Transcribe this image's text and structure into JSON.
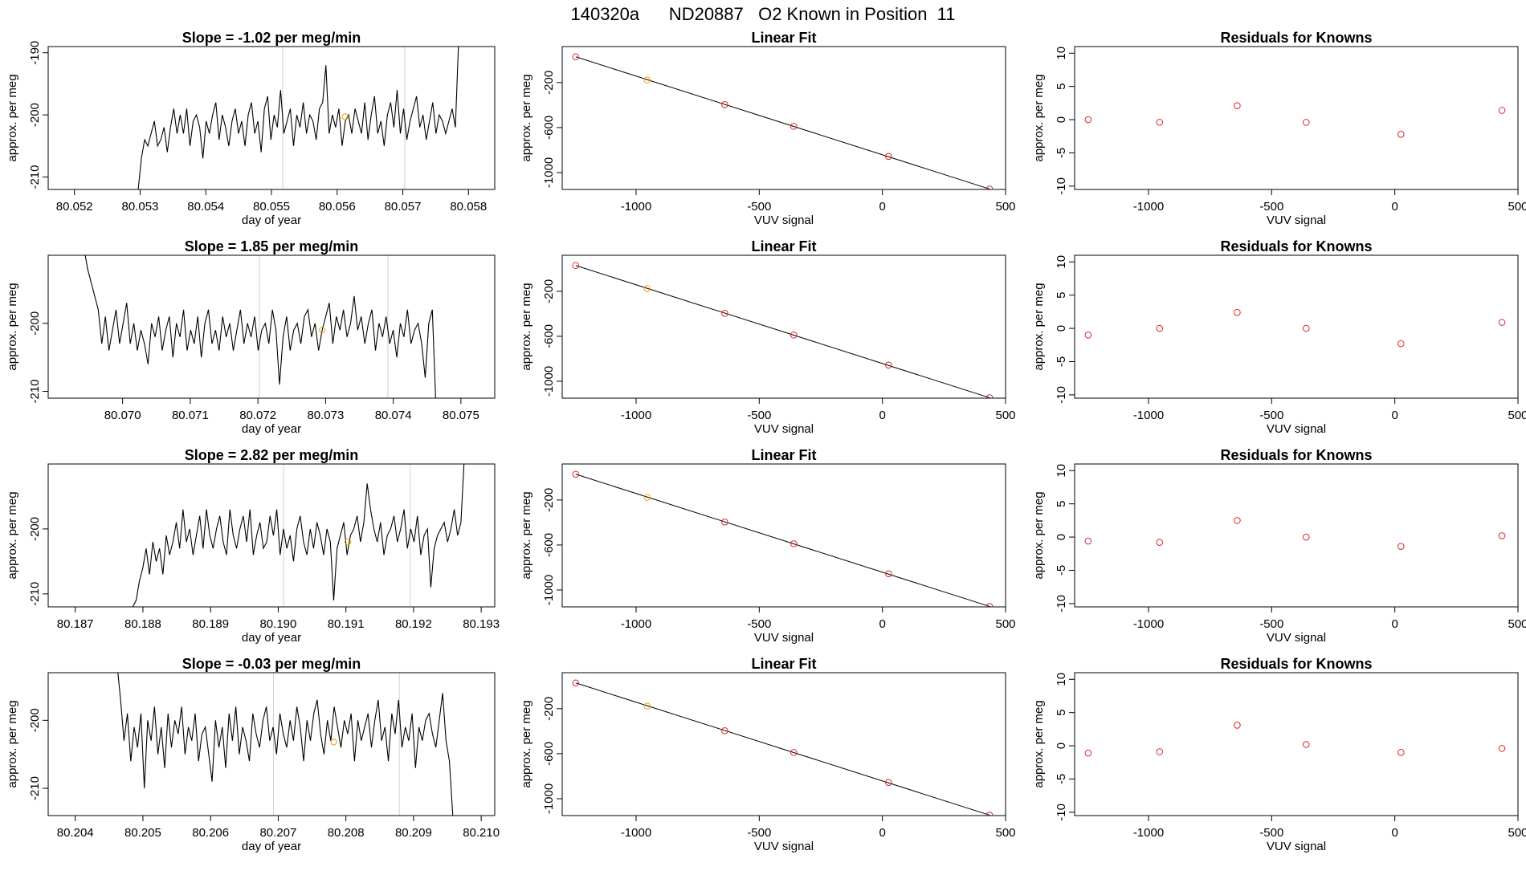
{
  "figure": {
    "title": "140320a      ND20887   O2 Known in Position  11"
  },
  "colors": {
    "axis": "#000000",
    "trace": "#000000",
    "fit_line": "#000000",
    "point_known": "#d62728",
    "point_highlight": "#f0a000",
    "vline": "#d0d0d0"
  },
  "chart_data": [
    {
      "type": "line",
      "row": 1,
      "title": "Slope =  -1.02  per meg/min",
      "xlabel": "day of year",
      "ylabel": "approx. per meg",
      "xlim": [
        80.0516,
        80.0584
      ],
      "ylim": [
        -212,
        -189
      ],
      "xticks": [
        80.052,
        80.053,
        80.054,
        80.055,
        80.056,
        80.057,
        80.058
      ],
      "xtick_labels": [
        "80.052",
        "80.053",
        "80.054",
        "80.055",
        "80.056",
        "80.057",
        "80.058"
      ],
      "yticks": [
        -190,
        -200,
        -210
      ],
      "ytick_labels": [
        "-190",
        "-200",
        "-210"
      ],
      "vlines": [
        80.05517,
        80.05703
      ],
      "trace_x_range": [
        80.05297,
        80.05785
      ],
      "trace_values": [
        -212,
        -207,
        -204,
        -205,
        -203,
        -201,
        -205,
        -204,
        -202,
        -206,
        -202,
        -199,
        -203,
        -200,
        -203,
        -199,
        -205,
        -201,
        -200,
        -202,
        -207,
        -201,
        -203,
        -200,
        -198,
        -204,
        -200,
        -202,
        -205,
        -201,
        -199,
        -203,
        -201,
        -205,
        -200,
        -198,
        -203,
        -201,
        -206,
        -199,
        -197,
        -204,
        -200,
        -202,
        -196,
        -203,
        -201,
        -199,
        -205,
        -200,
        -202,
        -198,
        -203,
        -200,
        -201,
        -204,
        -199,
        -198,
        -192,
        -203,
        -200,
        -202,
        -199,
        -205,
        -201,
        -200,
        -203,
        -199,
        -201,
        -203,
        -198,
        -204,
        -200,
        -197,
        -203,
        -201,
        -205,
        -200,
        -198,
        -202,
        -196,
        -203,
        -199,
        -204,
        -201,
        -199,
        -197,
        -202,
        -200,
        -204,
        -201,
        -198,
        -203,
        -200,
        -201,
        -203,
        -201,
        -199,
        -202,
        -188
      ],
      "highlight_point": [
        80.05612,
        -200.3
      ]
    },
    {
      "type": "scatter",
      "row": 1,
      "title": "Linear Fit",
      "xlabel": "VUV signal",
      "ylabel": "approx. per meg",
      "xlim": [
        -1300,
        500
      ],
      "ylim": [
        -1150,
        120
      ],
      "xticks": [
        -1000,
        -500,
        0,
        500
      ],
      "xtick_labels": [
        "-1000",
        "-500",
        "0",
        "500"
      ],
      "yticks": [
        -200,
        -600,
        -1000
      ],
      "ytick_labels": [
        "-200",
        "-600",
        "-1000"
      ],
      "points_x": [
        -1245,
        -955,
        -640,
        -360,
        25,
        435
      ],
      "points_y": [
        29,
        -177,
        -396,
        -589,
        -856,
        -1146
      ],
      "highlight_index": 1,
      "fit_line": {
        "x": [
          -1245,
          435
        ],
        "y": [
          29,
          -1146
        ]
      }
    },
    {
      "type": "scatter",
      "row": 1,
      "title": "Residuals for Knowns",
      "xlabel": "VUV signal",
      "ylabel": "approx. per meg",
      "xlim": [
        -1300,
        500
      ],
      "ylim": [
        -10.5,
        11
      ],
      "xticks": [
        -1000,
        -500,
        0,
        500
      ],
      "xtick_labels": [
        "-1000",
        "-500",
        "0",
        "500"
      ],
      "yticks": [
        10,
        5,
        0,
        -5,
        -10
      ],
      "ytick_labels": [
        "10",
        "5",
        "0",
        "-5",
        "-10"
      ],
      "points_x": [
        -1245,
        -955,
        -640,
        -360,
        25,
        435
      ],
      "points_y": [
        0,
        -0.4,
        2.1,
        -0.4,
        -2.2,
        1.4
      ]
    },
    {
      "type": "line",
      "row": 2,
      "title": "Slope =  1.85  per meg/min",
      "xlabel": "day of year",
      "ylabel": "approx. per meg",
      "xlim": [
        80.0689,
        80.0755
      ],
      "ylim": [
        -211,
        -190
      ],
      "xticks": [
        80.07,
        80.071,
        80.072,
        80.073,
        80.074,
        80.075
      ],
      "xtick_labels": [
        "80.070",
        "80.071",
        "80.072",
        "80.073",
        "80.074",
        "80.075"
      ],
      "yticks": [
        -200,
        -210
      ],
      "ytick_labels": [
        "-200",
        "-210"
      ],
      "vlines": [
        80.07202,
        80.07392
      ],
      "trace_x_range": [
        80.06943,
        80.07463
      ],
      "trace_values": [
        -189,
        -192,
        -194,
        -196,
        -198,
        -203,
        -199,
        -204,
        -201,
        -198,
        -203,
        -200,
        -197,
        -203,
        -200,
        -204,
        -201,
        -203,
        -206,
        -200,
        -202,
        -199,
        -204,
        -201,
        -199,
        -205,
        -200,
        -202,
        -198,
        -204,
        -201,
        -203,
        -199,
        -205,
        -200,
        -198,
        -203,
        -201,
        -204,
        -199,
        -202,
        -200,
        -204,
        -201,
        -198,
        -203,
        -200,
        -202,
        -199,
        -204,
        -201,
        -200,
        -203,
        -198,
        -201,
        -209,
        -202,
        -199,
        -204,
        -201,
        -200,
        -203,
        -199,
        -198,
        -202,
        -200,
        -204,
        -201,
        -199,
        -197,
        -203,
        -199,
        -201,
        -198,
        -202,
        -200,
        -196,
        -201,
        -199,
        -203,
        -200,
        -198,
        -204,
        -200,
        -202,
        -199,
        -203,
        -201,
        -205,
        -200,
        -202,
        -198,
        -203,
        -201,
        -200,
        -203,
        -208,
        -200,
        -198,
        -212
      ],
      "highlight_point": [
        80.07295,
        -201.0
      ]
    },
    {
      "type": "scatter",
      "row": 2,
      "title": "Linear Fit",
      "xlabel": "VUV signal",
      "ylabel": "approx. per meg",
      "xlim": [
        -1300,
        500
      ],
      "ylim": [
        -1150,
        120
      ],
      "xticks": [
        -1000,
        -500,
        0,
        500
      ],
      "xtick_labels": [
        "-1000",
        "-500",
        "0",
        "500"
      ],
      "yticks": [
        -200,
        -600,
        -1000
      ],
      "ytick_labels": [
        "-200",
        "-600",
        "-1000"
      ],
      "points_x": [
        -1245,
        -955,
        -640,
        -360,
        25,
        435
      ],
      "points_y": [
        29,
        -177,
        -396,
        -589,
        -856,
        -1146
      ],
      "highlight_index": 1,
      "fit_line": {
        "x": [
          -1245,
          435
        ],
        "y": [
          29,
          -1146
        ]
      }
    },
    {
      "type": "scatter",
      "row": 2,
      "title": "Residuals for Knowns",
      "xlabel": "VUV signal",
      "ylabel": "approx. per meg",
      "xlim": [
        -1300,
        500
      ],
      "ylim": [
        -10.5,
        11
      ],
      "xticks": [
        -1000,
        -500,
        0,
        500
      ],
      "xtick_labels": [
        "-1000",
        "-500",
        "0",
        "500"
      ],
      "yticks": [
        10,
        5,
        0,
        -5,
        -10
      ],
      "ytick_labels": [
        "10",
        "5",
        "0",
        "-5",
        "-10"
      ],
      "points_x": [
        -1245,
        -955,
        -640,
        -360,
        25,
        435
      ],
      "points_y": [
        -1.0,
        0,
        2.4,
        0,
        -2.3,
        0.9
      ]
    },
    {
      "type": "line",
      "row": 3,
      "title": "Slope =  2.82  per meg/min",
      "xlabel": "day of year",
      "ylabel": "approx. per meg",
      "xlim": [
        80.1866,
        80.1932
      ],
      "ylim": [
        -212,
        -190
      ],
      "xticks": [
        80.187,
        80.188,
        80.189,
        80.19,
        80.191,
        80.192,
        80.193
      ],
      "xtick_labels": [
        "80.187",
        "80.188",
        "80.189",
        "80.190",
        "80.191",
        "80.192",
        "80.193"
      ],
      "yticks": [
        -200,
        -210
      ],
      "ytick_labels": [
        "-200",
        "-210"
      ],
      "vlines": [
        80.19008,
        80.19195
      ],
      "trace_x_range": [
        80.18785,
        80.19275
      ],
      "trace_values": [
        -212,
        -211,
        -208,
        -206,
        -203,
        -207,
        -202,
        -205,
        -203,
        -207,
        -201,
        -204,
        -202,
        -199,
        -203,
        -197,
        -202,
        -200,
        -204,
        -201,
        -198,
        -203,
        -197,
        -201,
        -203,
        -200,
        -198,
        -202,
        -204,
        -197,
        -201,
        -203,
        -200,
        -198,
        -202,
        -197,
        -204,
        -201,
        -199,
        -203,
        -202,
        -198,
        -201,
        -197,
        -204,
        -200,
        -203,
        -201,
        -205,
        -200,
        -198,
        -202,
        -204,
        -200,
        -203,
        -199,
        -201,
        -204,
        -200,
        -202,
        -211,
        -203,
        -201,
        -199,
        -204,
        -201,
        -200,
        -198,
        -202,
        -199,
        -193,
        -197,
        -200,
        -202,
        -199,
        -204,
        -201,
        -200,
        -198,
        -202,
        -200,
        -197,
        -203,
        -200,
        -202,
        -198,
        -204,
        -201,
        -200,
        -209,
        -203,
        -201,
        -200,
        -199,
        -202,
        -200,
        -197,
        -201,
        -199,
        -189
      ],
      "highlight_point": [
        80.19103,
        -202.0
      ]
    },
    {
      "type": "scatter",
      "row": 3,
      "title": "Linear Fit",
      "xlabel": "VUV signal",
      "ylabel": "approx. per meg",
      "xlim": [
        -1300,
        500
      ],
      "ylim": [
        -1150,
        120
      ],
      "xticks": [
        -1000,
        -500,
        0,
        500
      ],
      "xtick_labels": [
        "-1000",
        "-500",
        "0",
        "500"
      ],
      "yticks": [
        -200,
        -600,
        -1000
      ],
      "ytick_labels": [
        "-200",
        "-600",
        "-1000"
      ],
      "points_x": [
        -1245,
        -955,
        -640,
        -360,
        25,
        435
      ],
      "points_y": [
        29,
        -177,
        -396,
        -589,
        -856,
        -1146
      ],
      "highlight_index": 1,
      "fit_line": {
        "x": [
          -1245,
          435
        ],
        "y": [
          29,
          -1146
        ]
      }
    },
    {
      "type": "scatter",
      "row": 3,
      "title": "Residuals for Knowns",
      "xlabel": "VUV signal",
      "ylabel": "approx. per meg",
      "xlim": [
        -1300,
        500
      ],
      "ylim": [
        -10.5,
        11
      ],
      "xticks": [
        -1000,
        -500,
        0,
        500
      ],
      "xtick_labels": [
        "-1000",
        "-500",
        "0",
        "500"
      ],
      "yticks": [
        10,
        5,
        0,
        -5,
        -10
      ],
      "ytick_labels": [
        "10",
        "5",
        "0",
        "-5",
        "-10"
      ],
      "points_x": [
        -1245,
        -955,
        -640,
        -360,
        25,
        435
      ],
      "points_y": [
        -0.6,
        -0.8,
        2.5,
        0,
        -1.4,
        0.2
      ]
    },
    {
      "type": "line",
      "row": 4,
      "title": "Slope =  -0.03  per meg/min",
      "xlabel": "day of year",
      "ylabel": "approx. per meg",
      "xlim": [
        80.2036,
        80.2102
      ],
      "ylim": [
        -214,
        -193
      ],
      "xticks": [
        80.204,
        80.205,
        80.206,
        80.207,
        80.208,
        80.209,
        80.21
      ],
      "xtick_labels": [
        "80.204",
        "80.205",
        "80.206",
        "80.207",
        "80.208",
        "80.209",
        "80.210"
      ],
      "yticks": [
        -200,
        -210
      ],
      "ytick_labels": [
        "-200",
        "-210"
      ],
      "vlines": [
        80.20693,
        80.20879
      ],
      "trace_x_range": [
        80.20462,
        80.20958
      ],
      "trace_values": [
        -192,
        -197,
        -203,
        -199,
        -206,
        -201,
        -204,
        -199,
        -210,
        -200,
        -203,
        -198,
        -205,
        -201,
        -207,
        -199,
        -204,
        -200,
        -202,
        -198,
        -205,
        -201,
        -203,
        -199,
        -206,
        -202,
        -201,
        -205,
        -209,
        -200,
        -204,
        -201,
        -207,
        -199,
        -203,
        -198,
        -205,
        -201,
        -203,
        -206,
        -199,
        -202,
        -204,
        -200,
        -198,
        -203,
        -201,
        -205,
        -199,
        -202,
        -204,
        -200,
        -203,
        -198,
        -201,
        -206,
        -200,
        -203,
        -199,
        -197,
        -202,
        -205,
        -200,
        -203,
        -198,
        -201,
        -204,
        -200,
        -202,
        -199,
        -206,
        -200,
        -203,
        -201,
        -199,
        -204,
        -200,
        -197,
        -203,
        -201,
        -206,
        -199,
        -202,
        -197,
        -204,
        -201,
        -203,
        -199,
        -207,
        -201,
        -203,
        -200,
        -199,
        -202,
        -204,
        -200,
        -196,
        -203,
        -206,
        -214
      ],
      "highlight_point": [
        80.20782,
        -203.2
      ]
    },
    {
      "type": "scatter",
      "row": 4,
      "title": "Linear Fit",
      "xlabel": "VUV signal",
      "ylabel": "approx. per meg",
      "xlim": [
        -1300,
        500
      ],
      "ylim": [
        -1150,
        120
      ],
      "xticks": [
        -1000,
        -500,
        0,
        500
      ],
      "xtick_labels": [
        "-1000",
        "-500",
        "0",
        "500"
      ],
      "yticks": [
        -200,
        -600,
        -1000
      ],
      "ytick_labels": [
        "-200",
        "-600",
        "-1000"
      ],
      "points_x": [
        -1245,
        -955,
        -640,
        -360,
        25,
        435
      ],
      "points_y": [
        29,
        -177,
        -396,
        -589,
        -856,
        -1146
      ],
      "highlight_index": 1,
      "fit_line": {
        "x": [
          -1245,
          435
        ],
        "y": [
          29,
          -1146
        ]
      }
    },
    {
      "type": "scatter",
      "row": 4,
      "title": "Residuals for Knowns",
      "xlabel": "VUV signal",
      "ylabel": "approx. per meg",
      "xlim": [
        -1300,
        500
      ],
      "ylim": [
        -10.5,
        11
      ],
      "xticks": [
        -1000,
        -500,
        0,
        500
      ],
      "xtick_labels": [
        "-1000",
        "-500",
        "0",
        "500"
      ],
      "yticks": [
        10,
        5,
        0,
        -5,
        -10
      ],
      "ytick_labels": [
        "10",
        "5",
        "0",
        "-5",
        "-10"
      ],
      "points_x": [
        -1245,
        -955,
        -640,
        -360,
        25,
        435
      ],
      "points_y": [
        -1.1,
        -0.9,
        3.1,
        0.2,
        -1.0,
        -0.4
      ]
    }
  ]
}
